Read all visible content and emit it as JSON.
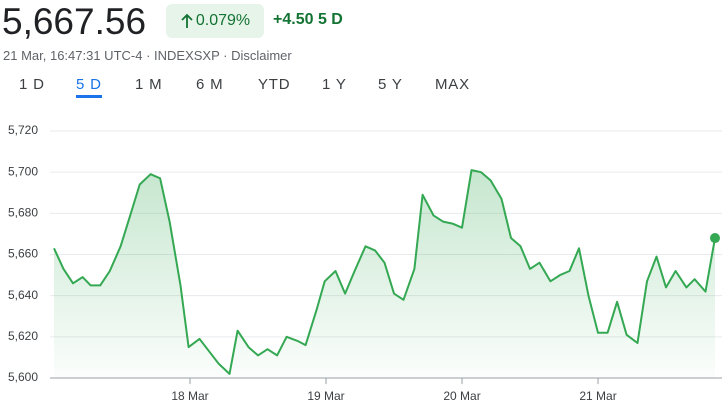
{
  "header": {
    "price": "5,667.56",
    "change_pct": "0.079%",
    "change_abs": "+4.50",
    "period": "5 D",
    "subline": "21 Mar, 16:47:31 UTC-4 · INDEXSXP · Disclaimer",
    "tabs": [
      "1 D",
      "5 D",
      "1 M",
      "6 M",
      "YTD",
      "1 Y",
      "5 Y",
      "MAX"
    ],
    "selected_tab": 1
  },
  "chart_data": {
    "type": "line",
    "x": [
      0,
      0.07,
      0.14,
      0.21,
      0.27,
      0.34,
      0.41,
      0.49,
      0.56,
      0.63,
      0.71,
      0.78,
      0.85,
      0.93,
      0.99,
      1.07,
      1.14,
      1.21,
      1.29,
      1.35,
      1.43,
      1.5,
      1.57,
      1.64,
      1.71,
      1.79,
      1.85,
      1.93,
      1.99,
      2.07,
      2.14,
      2.21,
      2.29,
      2.36,
      2.43,
      2.5,
      2.57,
      2.65,
      2.71,
      2.79,
      2.86,
      2.93,
      3.0,
      3.07,
      3.14,
      3.21,
      3.29,
      3.36,
      3.43,
      3.5,
      3.57,
      3.65,
      3.72,
      3.79,
      3.86,
      3.93,
      4.0,
      4.07,
      4.14,
      4.21,
      4.29,
      4.36,
      4.43,
      4.5,
      4.57,
      4.65,
      4.71,
      4.79,
      4.86
    ],
    "series": [
      {
        "color": "#34a853",
        "values": [
          5663,
          5653,
          5646,
          5649,
          5645,
          5645,
          5652,
          5664,
          5679,
          5694,
          5699,
          5697,
          5676,
          5645,
          5615,
          5619,
          5613,
          5607,
          5602,
          5623,
          5615,
          5611,
          5614,
          5611,
          5620,
          5618,
          5616,
          5633,
          5647,
          5652,
          5641,
          5652,
          5664,
          5662,
          5656,
          5641,
          5638,
          5653,
          5689,
          5679,
          5676,
          5675,
          5673,
          5701,
          5700,
          5696,
          5687,
          5668,
          5664,
          5653,
          5656,
          5647,
          5650,
          5652,
          5663,
          5640,
          5622,
          5622,
          5637,
          5621,
          5617,
          5647,
          5659,
          5644,
          5652,
          5644,
          5648,
          5642,
          5668
        ]
      }
    ],
    "xlim": [
      0,
      4.86
    ],
    "xticks": [
      {
        "value": 1,
        "label": "18 Mar"
      },
      {
        "value": 2,
        "label": "19 Mar"
      },
      {
        "value": 3,
        "label": "20 Mar"
      },
      {
        "value": 4,
        "label": "21 Mar"
      }
    ],
    "ylim": [
      5600,
      5720
    ],
    "yticks": [
      {
        "value": 5600,
        "label": "5,600"
      },
      {
        "value": 5620,
        "label": "5,620"
      },
      {
        "value": 5640,
        "label": "5,640"
      },
      {
        "value": 5660,
        "label": "5,660"
      },
      {
        "value": 5680,
        "label": "5,680"
      },
      {
        "value": 5700,
        "label": "5,700"
      },
      {
        "value": 5720,
        "label": "5,720"
      }
    ],
    "grid": true
  }
}
